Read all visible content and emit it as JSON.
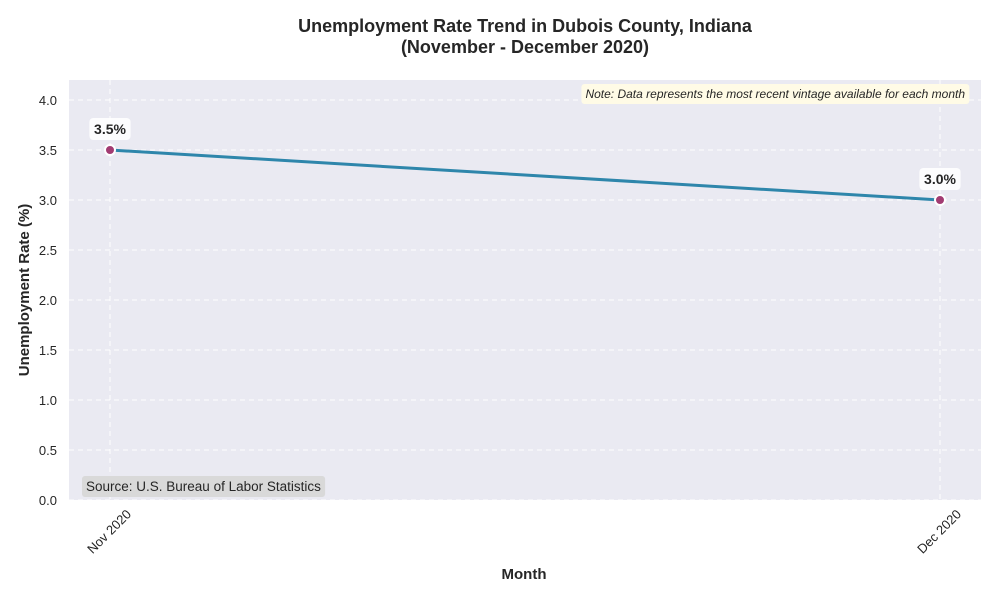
{
  "chart_data": {
    "type": "line",
    "title_line1": "Unemployment Rate Trend in Dubois County, Indiana",
    "title_line2": "(November - December 2020)",
    "xlabel": "Month",
    "ylabel": "Unemployment Rate (%)",
    "categories": [
      "Nov 2020",
      "Dec 2020"
    ],
    "series": [
      {
        "values": [
          3.5,
          3.0
        ]
      }
    ],
    "data_labels": [
      "3.5%",
      "3.0%"
    ],
    "ylim": [
      0,
      4.2
    ],
    "yticks": [
      0.0,
      0.5,
      1.0,
      1.5,
      2.0,
      2.5,
      3.0,
      3.5,
      4.0
    ],
    "ytick_labels": [
      "0.0",
      "0.5",
      "1.0",
      "1.5",
      "2.0",
      "2.5",
      "3.0",
      "3.5",
      "4.0"
    ],
    "grid": true,
    "note": "Note: Data represents the most recent vintage available for each month",
    "source": "Source: U.S. Bureau of Labor Statistics",
    "colors": {
      "line": "#2e86ab",
      "marker": "#a23b72",
      "plot_background": "#eaeaf2",
      "grid": "#ffffff",
      "note_background": "#fffbe6",
      "source_background": "#d9d9d9"
    }
  }
}
